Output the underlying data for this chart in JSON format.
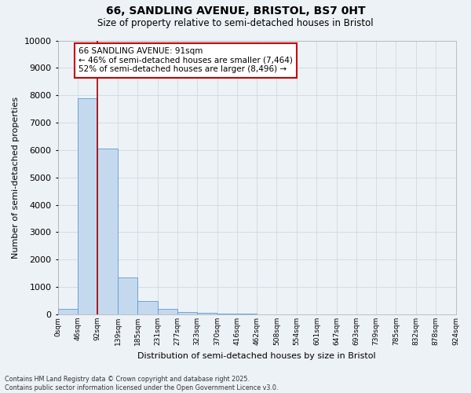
{
  "title_line1": "66, SANDLING AVENUE, BRISTOL, BS7 0HT",
  "title_line2": "Size of property relative to semi-detached houses in Bristol",
  "xlabel": "Distribution of semi-detached houses by size in Bristol",
  "ylabel": "Number of semi-detached properties",
  "bar_color": "#c5d9ee",
  "bar_edge_color": "#5b9bd5",
  "grid_color": "#d0d8e0",
  "bg_color": "#edf2f7",
  "property_size": 91,
  "property_line_color": "#aa0000",
  "annotation_text": "66 SANDLING AVENUE: 91sqm\n← 46% of semi-detached houses are smaller (7,464)\n52% of semi-detached houses are larger (8,496) →",
  "annotation_box_color": "#ffffff",
  "annotation_border_color": "#cc0000",
  "bin_edges": [
    0,
    46,
    92,
    139,
    185,
    231,
    277,
    323,
    370,
    416,
    462,
    508,
    554,
    601,
    647,
    693,
    739,
    785,
    832,
    878,
    924
  ],
  "bar_heights": [
    200,
    7900,
    6050,
    1350,
    490,
    190,
    90,
    50,
    25,
    15,
    8,
    4,
    3,
    2,
    1,
    1,
    1,
    0,
    0,
    0
  ],
  "ylim": [
    0,
    10000
  ],
  "yticks": [
    0,
    1000,
    2000,
    3000,
    4000,
    5000,
    6000,
    7000,
    8000,
    9000,
    10000
  ],
  "footnote": "Contains HM Land Registry data © Crown copyright and database right 2025.\nContains public sector information licensed under the Open Government Licence v3.0.",
  "figsize": [
    6.0,
    5.0
  ],
  "dpi": 100
}
